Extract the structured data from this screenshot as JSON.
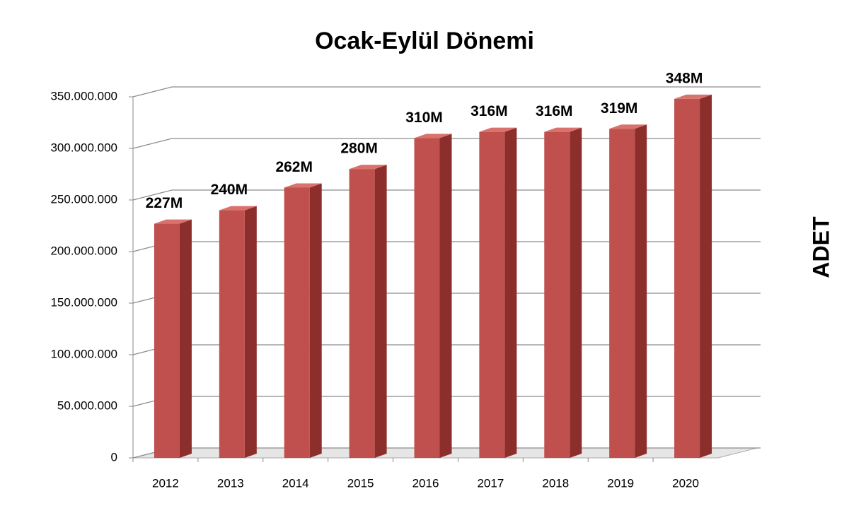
{
  "chart_data": {
    "type": "bar3d",
    "title": "Ocak-Eylül Dönemi",
    "y_label": "ADET",
    "categories": [
      "2012",
      "2013",
      "2014",
      "2015",
      "2016",
      "2017",
      "2018",
      "2019",
      "2020"
    ],
    "values": [
      227000000,
      240000000,
      262000000,
      280000000,
      310000000,
      316000000,
      316000000,
      319000000,
      348000000
    ],
    "value_labels": [
      "227M",
      "240M",
      "262M",
      "280M",
      "310M",
      "316M",
      "316M",
      "319M",
      "348M"
    ],
    "color": "#c0504d",
    "ylim": [
      0,
      350000000
    ],
    "yticks": [
      0,
      {
        "value": 50000000,
        "label": "50.000.000"
      },
      {
        "value": 100000000,
        "label": "100.000.000"
      },
      {
        "value": 150000000,
        "label": "150.000.000"
      },
      {
        "value": 200000000,
        "label": "200.000.000"
      },
      {
        "value": 250000000,
        "label": "250.000.000"
      },
      {
        "value": 300000000,
        "label": "300.000.000"
      },
      {
        "value": 350000000,
        "label": "350.000.000"
      }
    ],
    "grid": true
  }
}
